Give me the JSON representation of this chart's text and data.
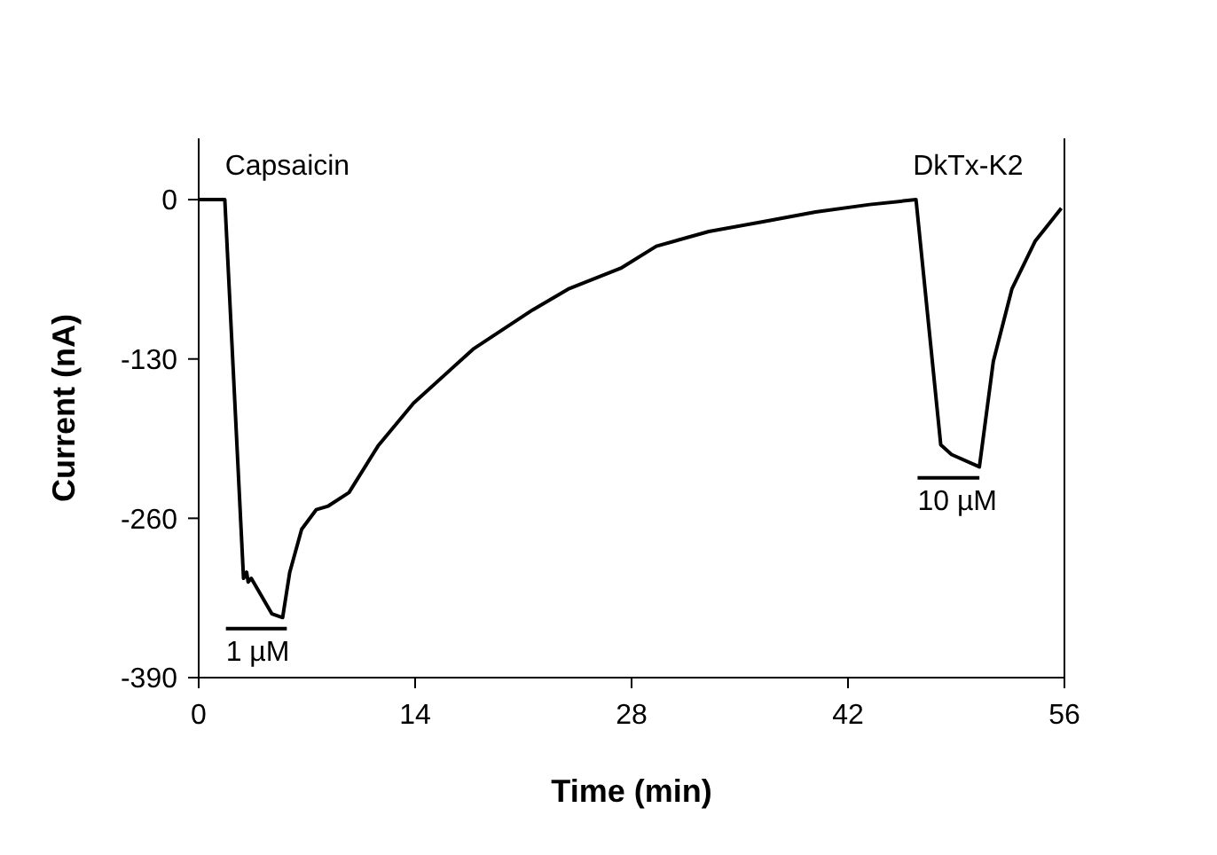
{
  "chart_data": {
    "type": "line",
    "xlabel": "Time (min)",
    "ylabel": "Current (nA)",
    "x": [
      0,
      1.69,
      2.9,
      3.1,
      3.2,
      3.4,
      4.74,
      5.43,
      5.89,
      6.66,
      7.6,
      8.38,
      9.72,
      11.6,
      13.9,
      17.75,
      21.6,
      23.9,
      27.3,
      29.6,
      33,
      36.5,
      39.9,
      43.4,
      46.4,
      48,
      48.7,
      50.5,
      51.4,
      52.6,
      54.1,
      55.8
    ],
    "series": [
      {
        "color": "#000000",
        "values": [
          0,
          0,
          -309,
          -304,
          -312,
          -309,
          -338,
          -341,
          -304,
          -269,
          -253,
          -250,
          -239,
          -201,
          -166,
          -122,
          -90,
          -73,
          -56,
          -38,
          -26,
          -18,
          -10,
          -4,
          0,
          -200,
          -208,
          -218,
          -132,
          -73,
          -34,
          -7
        ]
      },
      {
        "color": "#000000",
        "x": [
          1.76,
          5.7
        ],
        "values": [
          -350,
          -350
        ]
      },
      {
        "color": "#000000",
        "x": [
          46.5,
          50.5
        ],
        "values": [
          -227,
          -227
        ]
      }
    ],
    "xlim": [
      0,
      56
    ],
    "xticks": [
      0,
      14,
      28,
      42,
      56
    ],
    "ylim": [
      -390,
      50
    ],
    "yticks": [
      -390,
      -260,
      -130,
      0
    ],
    "annotations": [
      {
        "text": "1 µM",
        "x": 1.76,
        "y": -350
      },
      {
        "text": "10 µM",
        "x": 46.5,
        "y": -227
      },
      {
        "text": "Capsaicin",
        "x": 1.7,
        "y": 0
      },
      {
        "text": "DkTx-K2",
        "x": 46.2,
        "y": 0
      }
    ],
    "grid": false,
    "marker": "none",
    "line_style": "solid"
  }
}
